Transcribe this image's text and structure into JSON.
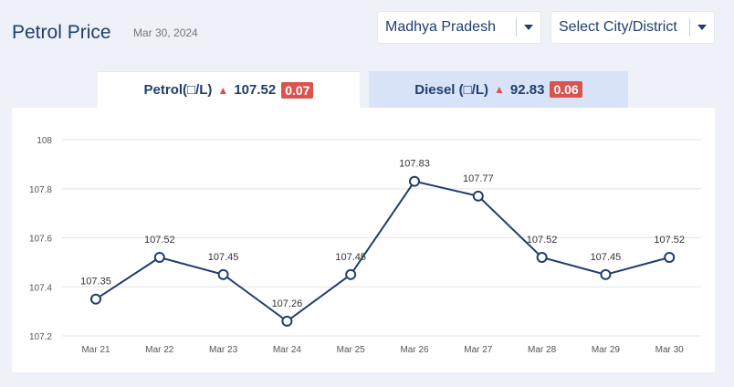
{
  "header": {
    "title": "Petrol Price",
    "date": "Mar 30, 2024"
  },
  "filters": {
    "state": "Madhya Pradesh",
    "city": "Select City/District"
  },
  "tabs": [
    {
      "label": "Petrol(□/L)",
      "price": "107.52",
      "change": "0.07",
      "active": true
    },
    {
      "label": "Diesel (□/L)",
      "price": "92.83",
      "change": "0.06",
      "active": false
    }
  ],
  "colors": {
    "line": "#1f3f6e",
    "increase": "#d9534f",
    "active_tab": "#ffffff",
    "inactive_tab": "#d9e3f7"
  },
  "chart_data": {
    "type": "line",
    "categories": [
      "Mar 21",
      "Mar 22",
      "Mar 23",
      "Mar 24",
      "Mar 25",
      "Mar 26",
      "Mar 27",
      "Mar 28",
      "Mar 29",
      "Mar 30"
    ],
    "series": [
      {
        "values": [
          107.35,
          107.52,
          107.45,
          107.26,
          107.45,
          107.83,
          107.77,
          107.52,
          107.45,
          107.52
        ]
      }
    ],
    "data_labels": [
      "107.35",
      "107.52",
      "107.45",
      "107.26",
      "107.45",
      "107.83",
      "107.77",
      "107.52",
      "107.45",
      "107.52"
    ],
    "y_ticks": [
      "107.2",
      "107.4",
      "107.6",
      "107.8",
      "108"
    ],
    "ylim": [
      107.2,
      108
    ],
    "grid": true,
    "title": "",
    "xlabel": "",
    "ylabel": ""
  }
}
